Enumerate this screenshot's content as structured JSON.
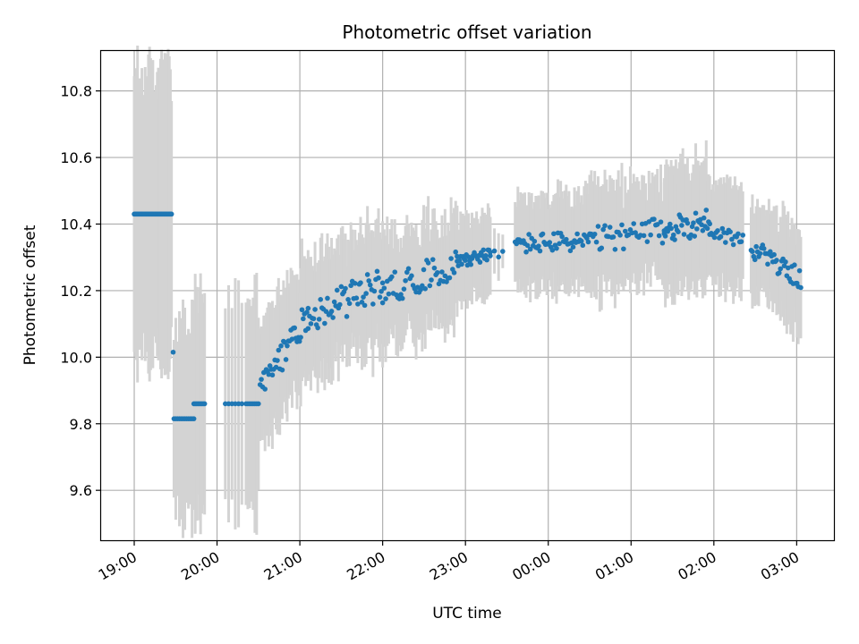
{
  "chart_data": {
    "type": "scatter",
    "title": "Photometric offset variation",
    "xlabel": "UTC time",
    "ylabel": "Photometric offset",
    "x_unit": "hours since 19:00 UTC",
    "xlim": [
      -0.4,
      8.45
    ],
    "ylim": [
      9.45,
      10.92
    ],
    "xticks": [
      {
        "value": 0,
        "label": "19:00"
      },
      {
        "value": 1,
        "label": "20:00"
      },
      {
        "value": 2,
        "label": "21:00"
      },
      {
        "value": 3,
        "label": "22:00"
      },
      {
        "value": 4,
        "label": "23:00"
      },
      {
        "value": 5,
        "label": "00:00"
      },
      {
        "value": 6,
        "label": "01:00"
      },
      {
        "value": 7,
        "label": "02:00"
      },
      {
        "value": 8,
        "label": "03:00"
      }
    ],
    "yticks": [
      {
        "value": 9.6,
        "label": "9.6"
      },
      {
        "value": 9.8,
        "label": "9.8"
      },
      {
        "value": 10.0,
        "label": "10.0"
      },
      {
        "value": 10.2,
        "label": "10.2"
      },
      {
        "value": 10.4,
        "label": "10.4"
      },
      {
        "value": 10.6,
        "label": "10.6"
      },
      {
        "value": 10.8,
        "label": "10.8"
      }
    ],
    "grid": true,
    "colors": {
      "points": "#1f77b4",
      "error_bars": "#d3d3d3",
      "grid": "#b0b0b0"
    },
    "segments": [
      {
        "x_start": 0.0,
        "x_end": 0.45,
        "count": 35,
        "y_start": 10.43,
        "y_end": 10.43,
        "y_var": 0.0,
        "err": 0.425
      },
      {
        "x_start": 0.47,
        "x_end": 0.47,
        "count": 1,
        "y_start": 10.015,
        "y_end": 10.015,
        "y_var": 0.0,
        "err": 0.0
      },
      {
        "x_start": 0.48,
        "x_end": 0.72,
        "count": 12,
        "y_start": 9.815,
        "y_end": 9.815,
        "y_var": 0.0,
        "err": 0.3
      },
      {
        "x_start": 0.72,
        "x_end": 0.85,
        "count": 9,
        "y_start": 9.86,
        "y_end": 9.86,
        "y_var": 0.0,
        "err": 0.34
      },
      {
        "x_start": 1.1,
        "x_end": 1.3,
        "count": 6,
        "y_start": 9.86,
        "y_end": 9.86,
        "y_var": 0.0,
        "err": 0.34
      },
      {
        "x_start": 1.35,
        "x_end": 1.5,
        "count": 8,
        "y_start": 9.86,
        "y_end": 9.86,
        "y_var": 0.0,
        "err": 0.34
      },
      {
        "x_start": 1.52,
        "x_end": 2.1,
        "count": 40,
        "y_start": 9.9,
        "y_end": 10.13,
        "y_var": 0.045,
        "err": 0.19
      },
      {
        "x_start": 2.1,
        "x_end": 3.0,
        "count": 55,
        "y_start": 10.12,
        "y_end": 10.22,
        "y_var": 0.05,
        "err": 0.19
      },
      {
        "x_start": 3.0,
        "x_end": 3.9,
        "count": 50,
        "y_start": 10.2,
        "y_end": 10.28,
        "y_var": 0.045,
        "err": 0.17
      },
      {
        "x_start": 3.9,
        "x_end": 4.3,
        "count": 30,
        "y_start": 10.29,
        "y_end": 10.31,
        "y_var": 0.02,
        "err": 0.12
      },
      {
        "x_start": 4.3,
        "x_end": 4.45,
        "count": 4,
        "y_start": 10.31,
        "y_end": 10.31,
        "y_var": 0.01,
        "err": 0.06
      },
      {
        "x_start": 4.6,
        "x_end": 5.5,
        "count": 55,
        "y_start": 10.34,
        "y_end": 10.35,
        "y_var": 0.03,
        "err": 0.14
      },
      {
        "x_start": 5.5,
        "x_end": 6.4,
        "count": 45,
        "y_start": 10.35,
        "y_end": 10.38,
        "y_var": 0.04,
        "err": 0.16
      },
      {
        "x_start": 6.4,
        "x_end": 6.95,
        "count": 40,
        "y_start": 10.38,
        "y_end": 10.41,
        "y_var": 0.04,
        "err": 0.18
      },
      {
        "x_start": 6.95,
        "x_end": 7.35,
        "count": 22,
        "y_start": 10.38,
        "y_end": 10.35,
        "y_var": 0.025,
        "err": 0.15
      },
      {
        "x_start": 7.45,
        "x_end": 8.05,
        "count": 40,
        "y_start": 10.33,
        "y_end": 10.235,
        "y_var": 0.03,
        "err": 0.15
      }
    ]
  }
}
